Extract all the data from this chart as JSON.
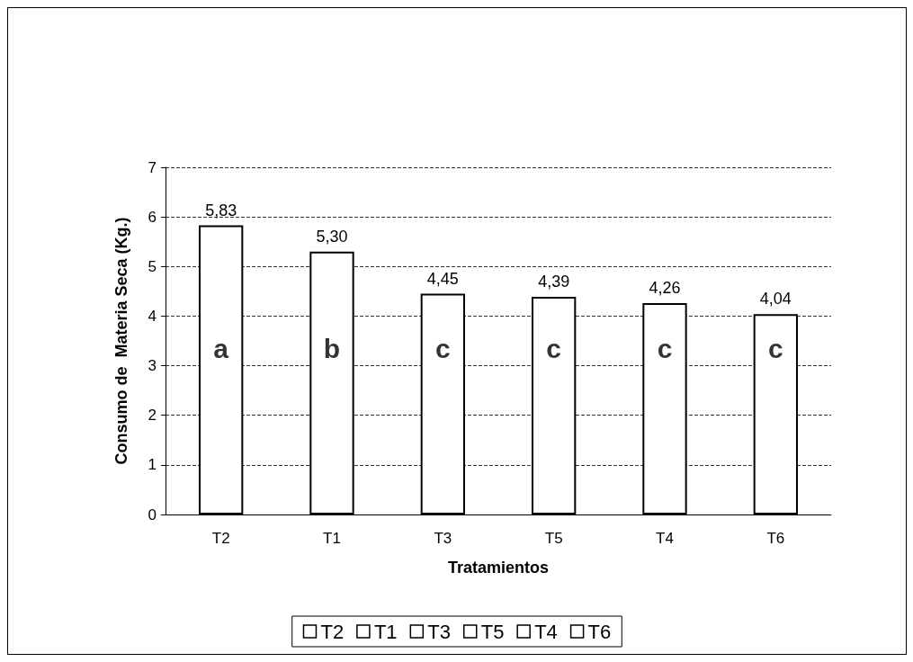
{
  "chart_data": {
    "type": "bar",
    "xlabel": "Tratamientos",
    "ylabel": "Consumo de  Materia Seca (Kg.)",
    "categories": [
      "T2",
      "T1",
      "T3",
      "T5",
      "T4",
      "T6"
    ],
    "series": [
      {
        "name": "T2",
        "color": "#ffffff",
        "values": [
          5.83,
          null,
          null,
          null,
          null,
          null
        ],
        "value_labels": [
          "5,83",
          null,
          null,
          null,
          null,
          null
        ]
      },
      {
        "name": "T1",
        "color": "#ffffff",
        "values": [
          null,
          5.3,
          null,
          null,
          null,
          null
        ],
        "value_labels": [
          null,
          "5,30",
          null,
          null,
          null,
          null
        ]
      },
      {
        "name": "T3",
        "color": "#ffffff",
        "values": [
          null,
          null,
          4.45,
          null,
          null,
          null
        ],
        "value_labels": [
          null,
          null,
          "4,45",
          null,
          null,
          null
        ]
      },
      {
        "name": "T5",
        "color": "#ffffff",
        "values": [
          null,
          null,
          null,
          4.39,
          null,
          null
        ],
        "value_labels": [
          null,
          null,
          null,
          "4,39",
          null,
          null
        ]
      },
      {
        "name": "T4",
        "color": "#ffffff",
        "values": [
          null,
          null,
          null,
          null,
          4.26,
          null
        ],
        "value_labels": [
          null,
          null,
          null,
          null,
          "4,26",
          null
        ]
      },
      {
        "name": "T6",
        "color": "#ffffff",
        "values": [
          null,
          null,
          null,
          null,
          null,
          4.04
        ],
        "value_labels": [
          null,
          null,
          null,
          null,
          null,
          "4,04"
        ]
      }
    ],
    "annotations": [
      "a",
      "b",
      "c",
      "c",
      "c",
      "c"
    ],
    "ylim": [
      0,
      7
    ],
    "yticks": [
      0,
      1,
      2,
      3,
      4,
      5,
      6,
      7
    ],
    "grid": "y",
    "legend": "bottom"
  }
}
